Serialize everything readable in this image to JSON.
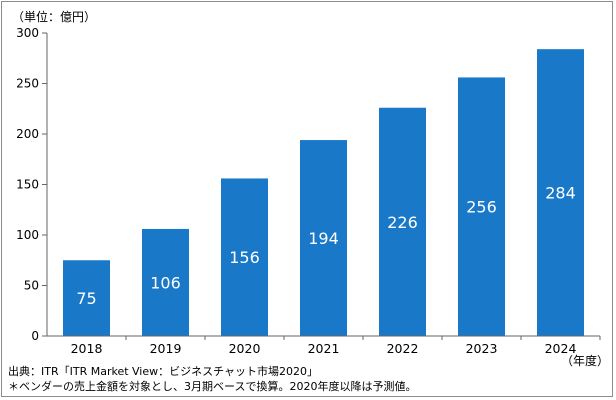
{
  "chart_data": {
    "type": "bar",
    "unit_label": "（単位：億円）",
    "x_unit_label": "（年度）",
    "categories": [
      "2018",
      "2019",
      "2020",
      "2021",
      "2022",
      "2023",
      "2024"
    ],
    "values": [
      75,
      106,
      156,
      194,
      226,
      256,
      284
    ],
    "data_labels": [
      "75",
      "106",
      "156",
      "194",
      "226",
      "256",
      "284"
    ],
    "y_ticks": [
      "0",
      "50",
      "100",
      "150",
      "200",
      "250",
      "300"
    ],
    "y_tick_values": [
      0,
      50,
      100,
      150,
      200,
      250,
      300
    ],
    "ylim": [
      0,
      300
    ],
    "grid": false,
    "bar_color": "#1a78c8",
    "source": "出典：ITR「ITR Market View：ビジネスチャット市場2020」",
    "footnote": "＊ベンダーの売上金額を対象とし、3月期ベースで換算。2020年度以降は予測値。"
  }
}
